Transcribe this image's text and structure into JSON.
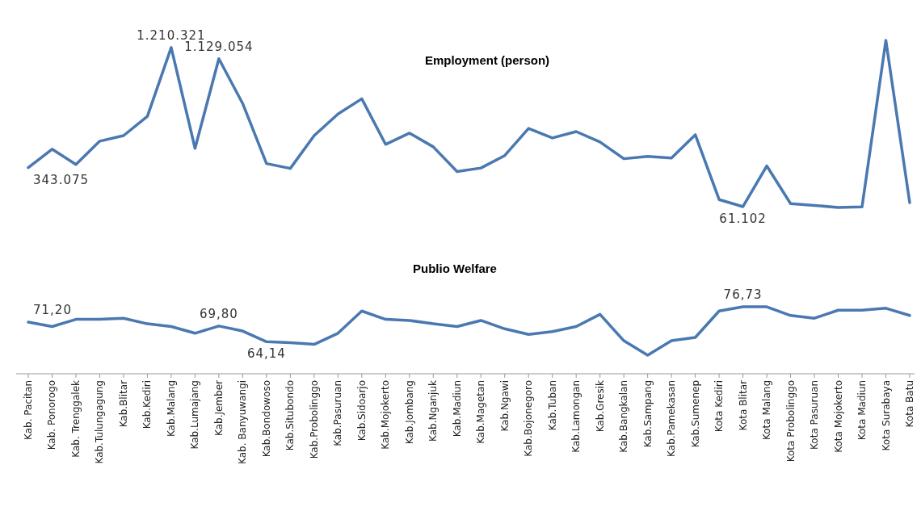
{
  "chart_data": [
    {
      "type": "line",
      "title": "Employment (person)",
      "categories": [
        null,
        null,
        null,
        null,
        null,
        null,
        null,
        null,
        null,
        null,
        null,
        null,
        null,
        null,
        null,
        null,
        null,
        null,
        null,
        null,
        null,
        null,
        null,
        null,
        null,
        null,
        null,
        null,
        null,
        null,
        null,
        null,
        null,
        null,
        null,
        null,
        null,
        null
      ],
      "series": [
        {
          "color": "#4a78b0",
          "values": [
            343075,
            476000,
            366000,
            534000,
            574000,
            713000,
            1210321,
            482000,
            1129054,
            806000,
            372000,
            337000,
            574000,
            730000,
            840000,
            511000,
            592000,
            493000,
            314000,
            340000,
            430000,
            626000,
            557000,
            603000,
            528000,
            407000,
            424000,
            412000,
            580000,
            112000,
            61102,
            355000,
            83000,
            70000,
            55000,
            60000,
            1262000,
            90000
          ],
          "value_labels": [
            "343.075",
            null,
            null,
            null,
            null,
            null,
            "1.210.321",
            null,
            "1.129.054",
            null,
            null,
            null,
            null,
            null,
            null,
            null,
            null,
            null,
            null,
            null,
            null,
            null,
            null,
            null,
            null,
            null,
            null,
            null,
            null,
            null,
            "61.102",
            null,
            null,
            null,
            null,
            null,
            null,
            null
          ]
        }
      ]
    },
    {
      "type": "line",
      "title": "Publio Welfare",
      "categories": [
        "Kab. Pacitan",
        "Kab. Ponorogo",
        "Kab. Trenggalek",
        "Kab.Tulungagung",
        "Kab.Blitar",
        "Kab.Kediri",
        "Kab.Malang",
        "Kab.Lumajang",
        "Kab.Jember",
        "Kab. Banyuwangi",
        "Kab.Bondowoso",
        "Kab.Situbondo",
        "Kab.Probolinggo",
        "Kab.Pasuruan",
        "Kab.Sidoarjo",
        "Kab.Mojokerto",
        "Kab.Jombang",
        "Kab.Nganjuk",
        "Kab.Madiun",
        "Kab.Magetan",
        "Kab.Ngawi",
        "Kab.Bojonegoro",
        "Kab.Tuban",
        "Kab.Lamongan",
        "Kab.Gresik",
        "Kab.Bangkalan",
        "Kab.Sampang",
        "Kab.Pamekasan",
        "Kab.Sumenep",
        "Kota Kediri",
        "Kota Blitar",
        "Kota Malang",
        "Kota Probolinggo",
        "Kota Pasuruan",
        "Kota Mojokerto",
        "Kota Madiun",
        "Kota Surabaya",
        "Kota Batu"
      ],
      "series": [
        {
          "color": "#4a78b0",
          "values": [
            71.2,
            69.6,
            72.2,
            72.2,
            72.6,
            70.6,
            69.6,
            67.2,
            69.8,
            68.0,
            64.14,
            63.8,
            63.2,
            67.2,
            75.2,
            72.2,
            71.8,
            70.6,
            69.6,
            71.8,
            68.8,
            66.8,
            67.8,
            69.6,
            74.0,
            64.5,
            59.3,
            64.5,
            65.7,
            75.2,
            76.73,
            76.7,
            73.6,
            72.6,
            75.5,
            75.5,
            76.2,
            73.6
          ],
          "value_labels": [
            "71,20",
            null,
            null,
            null,
            null,
            null,
            null,
            null,
            "69,80",
            null,
            "64,14",
            null,
            null,
            null,
            null,
            null,
            null,
            null,
            null,
            null,
            null,
            null,
            null,
            null,
            null,
            null,
            null,
            null,
            null,
            null,
            "76,73",
            null,
            null,
            null,
            null,
            null,
            null,
            null
          ]
        }
      ]
    }
  ]
}
